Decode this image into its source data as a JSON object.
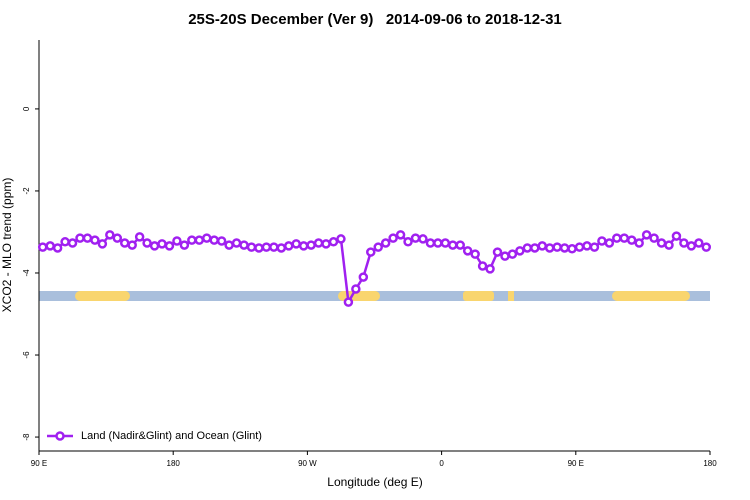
{
  "chart_data": {
    "type": "line",
    "title": "25S-20S December (Ver 9)   2014-09-06 to 2018-12-31",
    "x_label": "Longitude (deg E)",
    "y_label": "XCO2 - MLO trend (ppm)",
    "xlim": [
      90,
      540
    ],
    "ylim": [
      -8.34,
      1.68
    ],
    "xticks": [
      {
        "value": 90,
        "label": "90 E"
      },
      180,
      {
        "value": 270,
        "label": "90 W"
      },
      {
        "value": 360,
        "label": "0"
      },
      {
        "value": 450,
        "label": "90 E"
      },
      {
        "value": 540,
        "label": "180"
      }
    ],
    "yticks": [
      0,
      -2,
      -4,
      -6,
      -8
    ],
    "legend": "bottom-left",
    "series": [
      {
        "name": "Land (Nadir&Glint) and Ocean (Glint)",
        "color": "#a020f0",
        "x": [
          92.5,
          97.5,
          102.5,
          107.5,
          112.5,
          117.5,
          122.5,
          127.5,
          132.5,
          137.5,
          142.5,
          147.5,
          152.5,
          157.5,
          162.5,
          167.5,
          172.5,
          177.5,
          182.5,
          187.5,
          192.5,
          197.5,
          202.5,
          207.5,
          212.5,
          217.5,
          222.5,
          227.5,
          232.5,
          237.5,
          242.5,
          247.5,
          252.5,
          257.5,
          262.5,
          267.5,
          272.5,
          277.5,
          282.5,
          287.5,
          292.5,
          297.5,
          302.5,
          307.5,
          312.5,
          317.5,
          322.5,
          327.5,
          332.5,
          337.5,
          342.5,
          347.5,
          352.5,
          357.5,
          362.5,
          367.5,
          372.5,
          377.5,
          382.5,
          387.5,
          392.5,
          397.5,
          402.5,
          407.5,
          412.5,
          417.5,
          422.5,
          427.5,
          432.5,
          437.5,
          442.5,
          447.5,
          452.5,
          457.5,
          462.5,
          467.5,
          472.5,
          477.5,
          482.5,
          487.5,
          492.5,
          497.5,
          502.5,
          507.5,
          512.5,
          517.5,
          522.5,
          527.5,
          532.5,
          537.5
        ],
        "values": [
          -3.37,
          -3.34,
          -3.39,
          -3.24,
          -3.27,
          -3.15,
          -3.15,
          -3.2,
          -3.29,
          -3.07,
          -3.15,
          -3.27,
          -3.32,
          -3.12,
          -3.27,
          -3.34,
          -3.29,
          -3.34,
          -3.22,
          -3.32,
          -3.2,
          -3.2,
          -3.15,
          -3.2,
          -3.22,
          -3.32,
          -3.27,
          -3.32,
          -3.37,
          -3.39,
          -3.37,
          -3.37,
          -3.39,
          -3.34,
          -3.29,
          -3.34,
          -3.32,
          -3.27,
          -3.29,
          -3.24,
          -3.17,
          -4.71,
          -4.39,
          -4.1,
          -3.49,
          -3.37,
          -3.27,
          -3.15,
          -3.07,
          -3.24,
          -3.15,
          -3.17,
          -3.27,
          -3.27,
          -3.27,
          -3.32,
          -3.32,
          -3.46,
          -3.54,
          -3.83,
          -3.9,
          -3.49,
          -3.59,
          -3.54,
          -3.46,
          -3.39,
          -3.39,
          -3.34,
          -3.39,
          -3.37,
          -3.39,
          -3.41,
          -3.37,
          -3.34,
          -3.37,
          -3.22,
          -3.27,
          -3.15,
          -3.15,
          -3.2,
          -3.27,
          -3.07,
          -3.15,
          -3.27,
          -3.32,
          -3.1,
          -3.27,
          -3.34,
          -3.27,
          -3.37
        ]
      }
    ]
  }
}
